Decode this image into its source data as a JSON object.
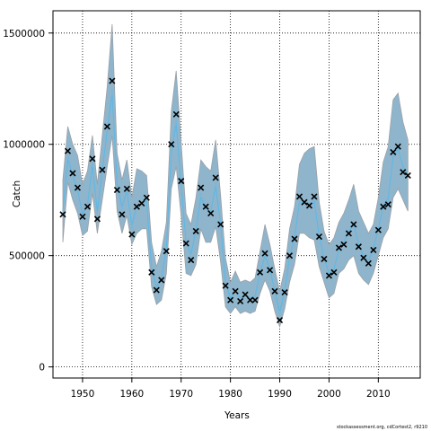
{
  "chart_data": {
    "type": "line",
    "title": "",
    "xlabel": "Years",
    "ylabel": "Catch",
    "xlim": [
      1944,
      2018.5
    ],
    "ylim": [
      -50000,
      1600000
    ],
    "x_ticks": [
      1950,
      1960,
      1970,
      1980,
      1990,
      2000,
      2010
    ],
    "y_ticks": [
      0,
      500000,
      1000000,
      1500000
    ],
    "y_tick_labels": [
      "0",
      "500000",
      "1000000",
      "1500000"
    ],
    "grid": true,
    "credit": "stockassessment.org, cdCortest2, r9210",
    "colors": {
      "band": "#8fb5cc",
      "band_edge": "#9aa0a6",
      "fit_line": "#5eb8e6",
      "observed": "#000000"
    },
    "years": [
      1946,
      1947,
      1948,
      1949,
      1950,
      1951,
      1952,
      1953,
      1954,
      1955,
      1956,
      1957,
      1958,
      1959,
      1960,
      1961,
      1962,
      1963,
      1964,
      1965,
      1966,
      1967,
      1968,
      1969,
      1970,
      1971,
      1972,
      1973,
      1974,
      1975,
      1976,
      1977,
      1978,
      1979,
      1980,
      1981,
      1982,
      1983,
      1984,
      1985,
      1986,
      1987,
      1988,
      1989,
      1990,
      1991,
      1992,
      1993,
      1994,
      1995,
      1996,
      1997,
      1998,
      1999,
      2000,
      2001,
      2002,
      2003,
      2004,
      2005,
      2006,
      2007,
      2008,
      2009,
      2010,
      2011,
      2012,
      2013,
      2014,
      2015,
      2016
    ],
    "series": [
      {
        "name": "observed",
        "values": [
          685000,
          970000,
          870000,
          805000,
          675000,
          720000,
          935000,
          665000,
          885000,
          1080000,
          1285000,
          795000,
          685000,
          800000,
          595000,
          720000,
          735000,
          760000,
          425000,
          345000,
          390000,
          520000,
          1000000,
          1135000,
          835000,
          555000,
          480000,
          610000,
          805000,
          720000,
          690000,
          850000,
          640000,
          365000,
          300000,
          340000,
          295000,
          325000,
          300000,
          300000,
          425000,
          510000,
          435000,
          340000,
          210000,
          335000,
          500000,
          575000,
          765000,
          740000,
          725000,
          765000,
          585000,
          485000,
          410000,
          425000,
          535000,
          550000,
          600000,
          640000,
          540000,
          490000,
          465000,
          525000,
          615000,
          720000,
          730000,
          965000,
          990000,
          875000,
          860000
        ]
      },
      {
        "name": "estimated",
        "values": [
          700000,
          930000,
          860000,
          790000,
          690000,
          730000,
          900000,
          700000,
          880000,
          1060000,
          1220000,
          830000,
          720000,
          790000,
          640000,
          720000,
          740000,
          740000,
          450000,
          360000,
          400000,
          530000,
          960000,
          1090000,
          820000,
          560000,
          510000,
          610000,
          760000,
          710000,
          700000,
          810000,
          640000,
          380000,
          310000,
          340000,
          310000,
          320000,
          310000,
          320000,
          420000,
          500000,
          440000,
          340000,
          250000,
          340000,
          490000,
          580000,
          740000,
          740000,
          730000,
          740000,
          590000,
          490000,
          420000,
          440000,
          530000,
          560000,
          610000,
          640000,
          550000,
          500000,
          480000,
          530000,
          620000,
          720000,
          760000,
          940000,
          980000,
          900000,
          860000
        ]
      }
    ],
    "band_lower": [
      560000,
      830000,
      750000,
      690000,
      590000,
      610000,
      780000,
      600000,
      750000,
      900000,
      1040000,
      700000,
      600000,
      680000,
      550000,
      600000,
      620000,
      620000,
      360000,
      280000,
      300000,
      420000,
      800000,
      900000,
      680000,
      420000,
      410000,
      460000,
      620000,
      560000,
      560000,
      630000,
      470000,
      270000,
      240000,
      270000,
      240000,
      250000,
      240000,
      250000,
      330000,
      390000,
      340000,
      250000,
      180000,
      260000,
      380000,
      460000,
      600000,
      600000,
      580000,
      570000,
      450000,
      380000,
      310000,
      330000,
      420000,
      440000,
      480000,
      500000,
      420000,
      390000,
      370000,
      420000,
      500000,
      580000,
      620000,
      760000,
      800000,
      750000,
      700000
    ],
    "band_upper": [
      840000,
      1080000,
      1000000,
      950000,
      820000,
      880000,
      1040000,
      820000,
      1040000,
      1260000,
      1540000,
      960000,
      840000,
      930000,
      760000,
      890000,
      880000,
      860000,
      560000,
      450000,
      520000,
      650000,
      1150000,
      1330000,
      1010000,
      690000,
      640000,
      760000,
      930000,
      900000,
      880000,
      1020000,
      770000,
      490000,
      380000,
      430000,
      380000,
      390000,
      380000,
      400000,
      520000,
      640000,
      550000,
      440000,
      340000,
      440000,
      620000,
      720000,
      910000,
      960000,
      980000,
      990000,
      740000,
      610000,
      550000,
      580000,
      650000,
      690000,
      750000,
      820000,
      700000,
      650000,
      600000,
      640000,
      760000,
      920000,
      990000,
      1200000,
      1230000,
      1100000,
      1020000
    ]
  }
}
